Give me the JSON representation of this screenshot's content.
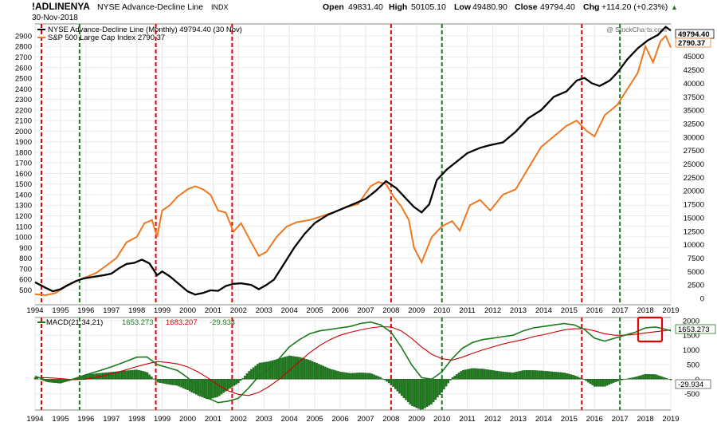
{
  "header": {
    "symbol": "!ADLINENYA",
    "name": "NYSE Advance-Decline Line",
    "exchange": "INDX",
    "date": "30-Nov-2018",
    "open_label": "Open",
    "open": "49831.40",
    "high_label": "High",
    "high": "50105.10",
    "low_label": "Low",
    "low": "49480.90",
    "close_label": "Close",
    "close": "49794.40",
    "chg_label": "Chg",
    "chg": "+114.20 (+0.23%)",
    "chg_arrow": "▲",
    "watermark": "@ StockCharts.com"
  },
  "colors": {
    "adl": "#000000",
    "spx": "#f07820",
    "macd": "#1a7a1a",
    "signal": "#c80000",
    "histogram": "#1a7a1a",
    "crash_line": "#e00000",
    "bottom_line": "#1a7a1a",
    "highlight_box": "#e00000"
  },
  "chart_data": [
    {
      "type": "line",
      "legend": [
        "NYSE Advance-Decline Line (Monthly) 49794.40 (30 Nov)",
        "S&P 500 Large Cap Index 2790.37"
      ],
      "left_axis_ticks": [
        500,
        600,
        700,
        800,
        900,
        1000,
        1100,
        1200,
        1300,
        1400,
        1500,
        1600,
        1700,
        1800,
        1900,
        2000,
        2100,
        2200,
        2300,
        2400,
        2500,
        2600,
        2700,
        2800,
        2900
      ],
      "right_axis_ticks": [
        0,
        2500,
        5000,
        7500,
        10000,
        12500,
        15000,
        17500,
        20000,
        22500,
        25000,
        27500,
        30000,
        32500,
        35000,
        37500,
        40000,
        42500,
        45000,
        47500
      ],
      "left_ylim": [
        420,
        2960
      ],
      "right_ylim": [
        0,
        50000
      ],
      "x_ticks": [
        "1994",
        "1995",
        "1996",
        "1997",
        "1998",
        "1999",
        "2000",
        "2001",
        "2002",
        "2003",
        "2004",
        "2005",
        "2006",
        "2007",
        "2008",
        "2009",
        "2010",
        "2011",
        "2012",
        "2013",
        "2014",
        "2015",
        "2016",
        "2017",
        "2018",
        "2019"
      ],
      "xlim": [
        1994.0,
        2019.0
      ],
      "last_value_labels": [
        "49794.40",
        "2790.37"
      ],
      "series": [
        {
          "name": "NYSE Advance-Decline Line (Monthly) 49794.40 (30 Nov)",
          "axis": "right",
          "x": [
            1994.0,
            1994.4,
            1994.7,
            1995.0,
            1995.3,
            1995.6,
            1995.9,
            1996.3,
            1996.7,
            1997.0,
            1997.3,
            1997.6,
            1997.9,
            1998.2,
            1998.5,
            1998.8,
            1999.0,
            1999.3,
            1999.6,
            2000.0,
            2000.3,
            2000.6,
            2000.9,
            2001.2,
            2001.5,
            2001.8,
            2002.1,
            2002.5,
            2002.8,
            2003.1,
            2003.4,
            2003.8,
            2004.2,
            2004.6,
            2005.0,
            2005.5,
            2006.0,
            2006.5,
            2007.0,
            2007.4,
            2007.8,
            2008.2,
            2008.6,
            2008.9,
            2009.2,
            2009.5,
            2009.8,
            2010.2,
            2010.6,
            2011.0,
            2011.5,
            2011.9,
            2012.4,
            2012.9,
            2013.4,
            2013.9,
            2014.4,
            2014.9,
            2015.3,
            2015.6,
            2015.9,
            2016.2,
            2016.6,
            2016.9,
            2017.3,
            2017.7,
            2018.1,
            2018.5,
            2018.8,
            2019.0
          ],
          "values": [
            3000,
            2000,
            1300,
            1700,
            2500,
            3200,
            3700,
            4000,
            4300,
            4600,
            5600,
            6400,
            6600,
            7200,
            6500,
            4300,
            5000,
            4100,
            2900,
            1300,
            700,
            1000,
            1500,
            1400,
            2300,
            2700,
            2800,
            2500,
            1700,
            2500,
            3500,
            6500,
            9500,
            12000,
            14000,
            15500,
            16500,
            17500,
            18500,
            20000,
            21800,
            20500,
            18500,
            17000,
            16000,
            17500,
            22000,
            24000,
            25500,
            27000,
            28000,
            28500,
            29000,
            31000,
            33500,
            35000,
            37500,
            38500,
            40500,
            41000,
            40000,
            39500,
            40500,
            42000,
            44500,
            46500,
            48000,
            49000,
            50500,
            49800
          ]
        },
        {
          "name": "S&P 500 Large Cap Index 2790.37",
          "axis": "left",
          "x": [
            1994.0,
            1994.4,
            1994.8,
            1995.2,
            1995.6,
            1996.0,
            1996.4,
            1996.8,
            1997.2,
            1997.6,
            1998.0,
            1998.3,
            1998.6,
            1998.8,
            1999.0,
            1999.3,
            1999.6,
            2000.0,
            2000.3,
            2000.6,
            2000.9,
            2001.2,
            2001.5,
            2001.8,
            2002.1,
            2002.5,
            2002.8,
            2003.1,
            2003.5,
            2003.9,
            2004.3,
            2004.8,
            2005.2,
            2005.7,
            2006.2,
            2006.7,
            2007.2,
            2007.5,
            2007.8,
            2008.1,
            2008.4,
            2008.7,
            2008.9,
            2009.2,
            2009.6,
            2010.0,
            2010.4,
            2010.7,
            2011.1,
            2011.5,
            2011.9,
            2012.4,
            2012.9,
            2013.4,
            2013.9,
            2014.4,
            2014.9,
            2015.3,
            2015.7,
            2016.0,
            2016.4,
            2016.9,
            2017.3,
            2017.7,
            2018.0,
            2018.3,
            2018.6,
            2018.8,
            2019.0
          ],
          "values": [
            460,
            450,
            470,
            530,
            580,
            620,
            660,
            730,
            800,
            950,
            1000,
            1130,
            1160,
            1000,
            1250,
            1300,
            1380,
            1450,
            1480,
            1450,
            1400,
            1250,
            1230,
            1050,
            1130,
            950,
            820,
            860,
            1000,
            1100,
            1140,
            1160,
            1190,
            1230,
            1280,
            1310,
            1480,
            1520,
            1500,
            1380,
            1290,
            1160,
            900,
            760,
            1000,
            1100,
            1150,
            1060,
            1300,
            1350,
            1250,
            1400,
            1450,
            1650,
            1850,
            1950,
            2050,
            2100,
            2000,
            1950,
            2150,
            2250,
            2400,
            2550,
            2800,
            2650,
            2850,
            2900,
            2790
          ]
        }
      ]
    },
    {
      "type": "line",
      "legend": [
        "MACD(21,34,21)",
        "1653.273",
        "1683.207",
        "-29.934"
      ],
      "axis_ticks": [
        -500,
        0,
        500,
        1000,
        1500,
        2000
      ],
      "ylim": [
        -1000,
        2050
      ],
      "xlim": [
        1994.0,
        2019.0
      ],
      "x_ticks": [
        "1994",
        "1995",
        "1996",
        "1997",
        "1998",
        "1999",
        "2000",
        "2001",
        "2002",
        "2003",
        "2004",
        "2005",
        "2006",
        "2007",
        "2008",
        "2009",
        "2010",
        "2011",
        "2012",
        "2013",
        "2014",
        "2015",
        "2016",
        "2017",
        "2018",
        "2019"
      ],
      "last_value_labels": [
        "1653.273",
        "-29.934"
      ],
      "series": [
        {
          "name": "MACD",
          "x": [
            1994.0,
            1994.5,
            1995.0,
            1995.5,
            1996.0,
            1996.5,
            1997.0,
            1997.5,
            1998.0,
            1998.4,
            1998.8,
            1999.2,
            1999.6,
            2000.0,
            2000.4,
            2000.8,
            2001.2,
            2001.6,
            2002.0,
            2002.4,
            2002.8,
            2003.2,
            2003.6,
            2004.0,
            2004.4,
            2004.8,
            2005.2,
            2005.6,
            2006.0,
            2006.4,
            2006.8,
            2007.2,
            2007.6,
            2008.0,
            2008.4,
            2008.8,
            2009.2,
            2009.6,
            2010.0,
            2010.4,
            2010.8,
            2011.2,
            2011.6,
            2012.0,
            2012.4,
            2012.8,
            2013.2,
            2013.6,
            2014.0,
            2014.4,
            2014.8,
            2015.2,
            2015.6,
            2016.0,
            2016.4,
            2016.8,
            2017.2,
            2017.6,
            2018.0,
            2018.4,
            2018.8,
            2019.0
          ],
          "values": [
            100,
            -50,
            -120,
            0,
            150,
            280,
            420,
            580,
            750,
            760,
            500,
            400,
            300,
            50,
            -300,
            -650,
            -800,
            -750,
            -650,
            -300,
            100,
            350,
            700,
            1100,
            1350,
            1550,
            1650,
            1700,
            1750,
            1800,
            1900,
            1950,
            1850,
            1600,
            1100,
            500,
            50,
            0,
            250,
            700,
            1050,
            1250,
            1350,
            1400,
            1450,
            1500,
            1650,
            1750,
            1800,
            1850,
            1900,
            1850,
            1700,
            1400,
            1300,
            1400,
            1500,
            1600,
            1750,
            1780,
            1700,
            1653
          ]
        },
        {
          "name": "Signal",
          "x": [
            1994.0,
            1994.5,
            1995.0,
            1995.5,
            1996.0,
            1996.5,
            1997.0,
            1997.5,
            1998.0,
            1998.4,
            1998.8,
            1999.2,
            1999.6,
            2000.0,
            2000.4,
            2000.8,
            2001.2,
            2001.6,
            2002.0,
            2002.4,
            2002.8,
            2003.2,
            2003.6,
            2004.0,
            2004.4,
            2004.8,
            2005.2,
            2005.6,
            2006.0,
            2006.4,
            2006.8,
            2007.2,
            2007.6,
            2008.0,
            2008.4,
            2008.8,
            2009.2,
            2009.6,
            2010.0,
            2010.4,
            2010.8,
            2011.2,
            2011.6,
            2012.0,
            2012.4,
            2012.8,
            2013.2,
            2013.6,
            2014.0,
            2014.4,
            2014.8,
            2015.2,
            2015.6,
            2016.0,
            2016.4,
            2016.8,
            2017.2,
            2017.6,
            2018.0,
            2018.4,
            2018.8,
            2019.0
          ],
          "values": [
            50,
            50,
            20,
            -20,
            0,
            80,
            180,
            300,
            430,
            520,
            600,
            570,
            520,
            420,
            250,
            40,
            -200,
            -400,
            -520,
            -560,
            -450,
            -250,
            0,
            300,
            600,
            900,
            1150,
            1350,
            1500,
            1600,
            1680,
            1750,
            1790,
            1780,
            1650,
            1400,
            1100,
            850,
            700,
            650,
            750,
            880,
            1000,
            1100,
            1200,
            1280,
            1350,
            1450,
            1520,
            1600,
            1680,
            1720,
            1720,
            1650,
            1550,
            1500,
            1500,
            1530,
            1580,
            1620,
            1660,
            1683
          ]
        },
        {
          "name": "Histogram",
          "x": [
            1994.0,
            1994.5,
            1995.0,
            1995.5,
            1996.0,
            1996.5,
            1997.0,
            1997.5,
            1998.0,
            1998.4,
            1998.8,
            1999.2,
            1999.6,
            2000.0,
            2000.4,
            2000.8,
            2001.2,
            2001.6,
            2002.0,
            2002.4,
            2002.8,
            2003.2,
            2003.6,
            2004.0,
            2004.4,
            2004.8,
            2005.2,
            2005.6,
            2006.0,
            2006.4,
            2006.8,
            2007.2,
            2007.6,
            2008.0,
            2008.4,
            2008.8,
            2009.2,
            2009.6,
            2010.0,
            2010.4,
            2010.8,
            2011.2,
            2011.6,
            2012.0,
            2012.4,
            2012.8,
            2013.2,
            2013.6,
            2014.0,
            2014.4,
            2014.8,
            2015.2,
            2015.6,
            2016.0,
            2016.4,
            2016.8,
            2017.2,
            2017.6,
            2018.0,
            2018.4,
            2018.8,
            2019.0
          ],
          "values": [
            50,
            -100,
            -140,
            20,
            150,
            200,
            240,
            280,
            320,
            240,
            -100,
            -170,
            -220,
            -370,
            -550,
            -690,
            -600,
            -350,
            -130,
            260,
            550,
            600,
            700,
            800,
            750,
            650,
            500,
            350,
            250,
            200,
            220,
            200,
            60,
            -180,
            -550,
            -900,
            -1050,
            -850,
            -450,
            50,
            300,
            370,
            350,
            300,
            250,
            220,
            300,
            300,
            280,
            250,
            220,
            130,
            -20,
            -250,
            -250,
            -100,
            0,
            70,
            170,
            160,
            40,
            -30
          ]
        }
      ]
    }
  ],
  "event_lines": {
    "crash_years": [
      1994.25,
      1998.75,
      2001.75,
      2008.0,
      2015.5
    ],
    "bottom_years": [
      1995.75,
      1998.75,
      2001.75,
      2010.0,
      2017.0
    ]
  }
}
